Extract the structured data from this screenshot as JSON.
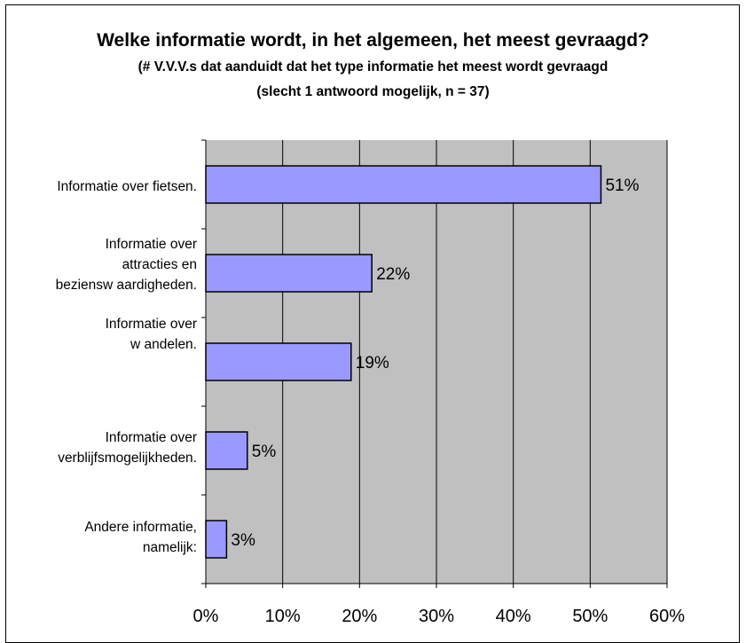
{
  "chart_data": {
    "type": "bar",
    "orientation": "horizontal",
    "title": "Welke informatie wordt, in het algemeen, het meest gevraagd?",
    "subtitle_lines": [
      "(# V.V.V.s dat aanduidt dat het type informatie het meest wordt gevraagd",
      "(slecht 1 antwoord mogelijk, n = 37)"
    ],
    "categories": [
      "Informatie over fietsen.",
      "Informatie over\nattracties en\nbeziensw aardigheden.",
      "Informatie over\nw andelen.",
      "Informatie over\nverblijfsmogelijkheden.",
      "Andere informatie,\nnamelijk:"
    ],
    "values": [
      51.4,
      21.6,
      18.9,
      5.4,
      2.7
    ],
    "data_labels": [
      "51%",
      "22%",
      "19%",
      "5%",
      "3%"
    ],
    "x_ticks": [
      "0%",
      "10%",
      "20%",
      "30%",
      "40%",
      "50%",
      "60%"
    ],
    "xlim": [
      0,
      60
    ],
    "grid": true,
    "legend": "none",
    "colors": {
      "plot_background": "#c0c0c0",
      "bar_fill": "#9999ff",
      "bar_stroke": "#000000",
      "gridline": "#000000"
    }
  }
}
